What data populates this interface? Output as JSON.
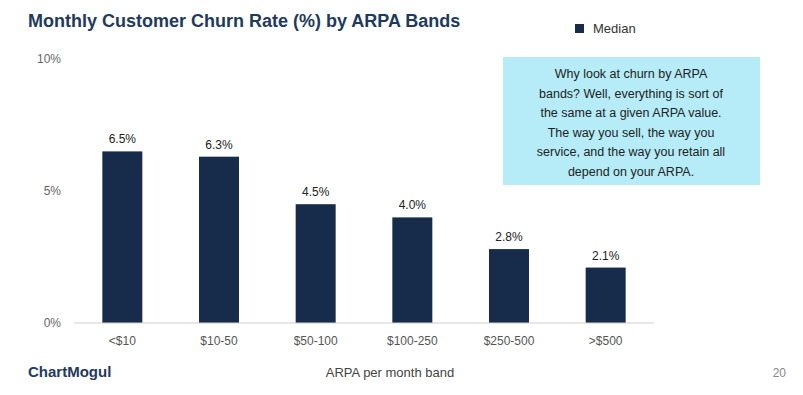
{
  "chart_data": {
    "type": "bar",
    "title": "Monthly Customer Churn Rate (%) by ARPA Bands",
    "x_label": "ARPA per month band",
    "categories": [
      "<$10",
      "$10-50",
      "$50-100",
      "$100-250",
      "$250-500",
      ">$500"
    ],
    "series": [
      {
        "name": "Median",
        "color": "#172c4b",
        "values": [
          6.5,
          6.3,
          4.5,
          4.0,
          2.8,
          2.1
        ],
        "value_labels": [
          "6.5%",
          "6.3%",
          "4.5%",
          "4.0%",
          "2.8%",
          "2.1%"
        ]
      }
    ],
    "ylim": [
      0,
      10
    ],
    "yticks": [
      {
        "value": 0,
        "label": "0%"
      },
      {
        "value": 5,
        "label": "5%"
      },
      {
        "value": 10,
        "label": "10%"
      }
    ],
    "grid": false,
    "legend": "top-right",
    "data_labels": true,
    "annotation": [
      "Why look at churn by ARPA",
      "bands? Well, everything is sort of",
      "the same at a given ARPA value.",
      "The way you sell, the way you",
      "service, and the way you retain all",
      "depend on your ARPA."
    ],
    "source": "ChartMogul",
    "page_number": "20"
  }
}
